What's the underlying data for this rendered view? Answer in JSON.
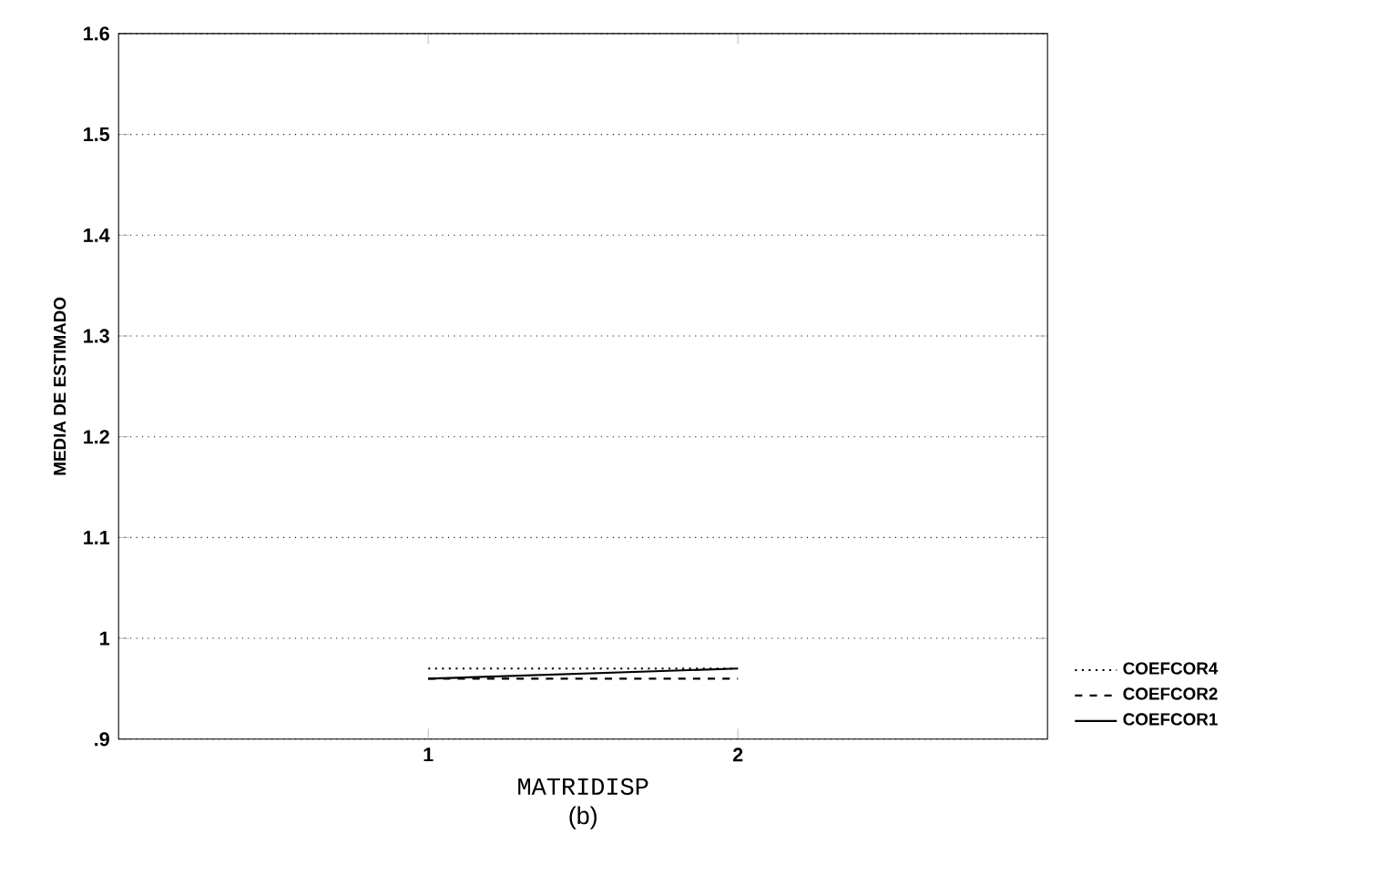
{
  "chart_data": {
    "type": "line",
    "xlabel": "MATRIDISP",
    "ylabel": "MEDIA DE ESTIMADO",
    "annotations": [
      "(b)"
    ],
    "x": [
      1,
      2
    ],
    "xlim": [
      0,
      3
    ],
    "xticks": [
      1,
      2
    ],
    "ylim": [
      0.9,
      1.6
    ],
    "yticks": [
      {
        "value": 0.9,
        "label": ".9"
      },
      1,
      1.1,
      1.2,
      1.3,
      1.4,
      1.5,
      1.6
    ],
    "grid": "y",
    "legend": "bottom right",
    "marker": "none",
    "series": [
      {
        "name": "COEFCOR4",
        "color": "#000000",
        "line_style": "dotted",
        "values": [
          0.97,
          0.97
        ]
      },
      {
        "name": "COEFCOR2",
        "color": "#000000",
        "line_style": "dashed",
        "values": [
          0.96,
          0.96
        ]
      },
      {
        "name": "COEFCOR1",
        "color": "#000000",
        "line_style": "solid",
        "values": [
          0.96,
          0.97
        ]
      }
    ]
  }
}
